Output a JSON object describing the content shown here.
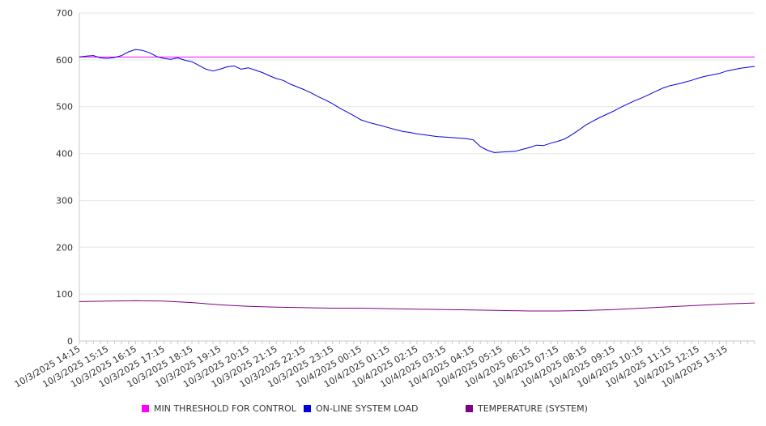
{
  "chart_data": {
    "type": "line",
    "title": "",
    "xlabel": "",
    "ylabel": "",
    "ylim": [
      0,
      700
    ],
    "yticks": [
      0,
      100,
      200,
      300,
      400,
      500,
      600,
      700
    ],
    "grid": true,
    "legend_position": "bottom",
    "x_tick_labels": [
      "10/3/2025 14:15",
      "10/3/2025 15:15",
      "10/3/2025 16:15",
      "10/3/2025 17:15",
      "10/3/2025 18:15",
      "10/3/2025 19:15",
      "10/3/2025 20:15",
      "10/3/2025 21:15",
      "10/3/2025 22:15",
      "10/3/2025 23:15",
      "10/4/2025 00:15",
      "10/4/2025 01:15",
      "10/4/2025 02:15",
      "10/4/2025 03:15",
      "10/4/2025 04:15",
      "10/4/2025 05:15",
      "10/4/2025 06:15",
      "10/4/2025 07:15",
      "10/4/2025 08:15",
      "10/4/2025 09:15",
      "10/4/2025 10:15",
      "10/4/2025 11:15",
      "10/4/2025 12:15",
      "10/4/2025 13:15"
    ],
    "x_range": [
      "10/3/2025 14:15",
      "10/4/2025 14:15"
    ],
    "series": [
      {
        "name": "MIN THRESHOLD FOR CONTROL",
        "color": "#ff00ff",
        "points": [
          [
            "10/3/2025 14:15",
            606
          ],
          [
            "10/4/2025 14:15",
            606
          ]
        ]
      },
      {
        "name": "ON-LINE SYSTEM LOAD",
        "color": "#0000dd",
        "points": [
          [
            "10/3/2025 14:15",
            606
          ],
          [
            "10/3/2025 14:30",
            608
          ],
          [
            "10/3/2025 14:45",
            609
          ],
          [
            "10/3/2025 15:00",
            604
          ],
          [
            "10/3/2025 15:15",
            603
          ],
          [
            "10/3/2025 15:30",
            605
          ],
          [
            "10/3/2025 15:45",
            609
          ],
          [
            "10/3/2025 16:00",
            617
          ],
          [
            "10/3/2025 16:15",
            622
          ],
          [
            "10/3/2025 16:30",
            620
          ],
          [
            "10/3/2025 16:45",
            615
          ],
          [
            "10/3/2025 17:00",
            607
          ],
          [
            "10/3/2025 17:15",
            603
          ],
          [
            "10/3/2025 17:30",
            601
          ],
          [
            "10/3/2025 17:45",
            604
          ],
          [
            "10/3/2025 18:00",
            599
          ],
          [
            "10/3/2025 18:15",
            596
          ],
          [
            "10/3/2025 18:30",
            588
          ],
          [
            "10/3/2025 18:45",
            580
          ],
          [
            "10/3/2025 19:00",
            576
          ],
          [
            "10/3/2025 19:15",
            580
          ],
          [
            "10/3/2025 19:30",
            585
          ],
          [
            "10/3/2025 19:45",
            587
          ],
          [
            "10/3/2025 20:00",
            580
          ],
          [
            "10/3/2025 20:15",
            583
          ],
          [
            "10/3/2025 20:30",
            578
          ],
          [
            "10/3/2025 20:45",
            573
          ],
          [
            "10/3/2025 21:00",
            566
          ],
          [
            "10/3/2025 21:15",
            560
          ],
          [
            "10/3/2025 21:30",
            556
          ],
          [
            "10/3/2025 21:45",
            548
          ],
          [
            "10/3/2025 22:00",
            542
          ],
          [
            "10/3/2025 22:15",
            536
          ],
          [
            "10/3/2025 22:30",
            529
          ],
          [
            "10/3/2025 22:45",
            521
          ],
          [
            "10/3/2025 23:00",
            514
          ],
          [
            "10/3/2025 23:15",
            506
          ],
          [
            "10/3/2025 23:30",
            497
          ],
          [
            "10/3/2025 23:45",
            489
          ],
          [
            "10/4/2025 00:00",
            481
          ],
          [
            "10/4/2025 00:15",
            472
          ],
          [
            "10/4/2025 00:30",
            467
          ],
          [
            "10/4/2025 00:45",
            463
          ],
          [
            "10/4/2025 01:00",
            459
          ],
          [
            "10/4/2025 01:15",
            455
          ],
          [
            "10/4/2025 01:30",
            451
          ],
          [
            "10/4/2025 01:45",
            447
          ],
          [
            "10/4/2025 02:00",
            445
          ],
          [
            "10/4/2025 02:15",
            442
          ],
          [
            "10/4/2025 02:30",
            440
          ],
          [
            "10/4/2025 02:45",
            438
          ],
          [
            "10/4/2025 03:00",
            436
          ],
          [
            "10/4/2025 03:15",
            435
          ],
          [
            "10/4/2025 03:30",
            434
          ],
          [
            "10/4/2025 03:45",
            433
          ],
          [
            "10/4/2025 04:00",
            432
          ],
          [
            "10/4/2025 04:15",
            429
          ],
          [
            "10/4/2025 04:30",
            415
          ],
          [
            "10/4/2025 04:45",
            407
          ],
          [
            "10/4/2025 05:00",
            402
          ],
          [
            "10/4/2025 05:15",
            403
          ],
          [
            "10/4/2025 05:30",
            404
          ],
          [
            "10/4/2025 05:45",
            405
          ],
          [
            "10/4/2025 06:00",
            409
          ],
          [
            "10/4/2025 06:15",
            413
          ],
          [
            "10/4/2025 06:30",
            418
          ],
          [
            "10/4/2025 06:45",
            417
          ],
          [
            "10/4/2025 07:00",
            422
          ],
          [
            "10/4/2025 07:15",
            426
          ],
          [
            "10/4/2025 07:30",
            431
          ],
          [
            "10/4/2025 07:45",
            440
          ],
          [
            "10/4/2025 08:00",
            450
          ],
          [
            "10/4/2025 08:15",
            461
          ],
          [
            "10/4/2025 08:30",
            469
          ],
          [
            "10/4/2025 08:45",
            477
          ],
          [
            "10/4/2025 09:00",
            484
          ],
          [
            "10/4/2025 09:15",
            491
          ],
          [
            "10/4/2025 09:30",
            499
          ],
          [
            "10/4/2025 09:45",
            506
          ],
          [
            "10/4/2025 10:00",
            513
          ],
          [
            "10/4/2025 10:15",
            519
          ],
          [
            "10/4/2025 10:30",
            526
          ],
          [
            "10/4/2025 10:45",
            533
          ],
          [
            "10/4/2025 11:00",
            540
          ],
          [
            "10/4/2025 11:15",
            545
          ],
          [
            "10/4/2025 11:30",
            548
          ],
          [
            "10/4/2025 11:45",
            552
          ],
          [
            "10/4/2025 12:00",
            556
          ],
          [
            "10/4/2025 12:15",
            561
          ],
          [
            "10/4/2025 12:30",
            565
          ],
          [
            "10/4/2025 12:45",
            568
          ],
          [
            "10/4/2025 13:00",
            571
          ],
          [
            "10/4/2025 13:15",
            576
          ],
          [
            "10/4/2025 13:30",
            579
          ],
          [
            "10/4/2025 13:45",
            582
          ],
          [
            "10/4/2025 14:00",
            584
          ],
          [
            "10/4/2025 14:15",
            586
          ]
        ]
      },
      {
        "name": "TEMPERATURE (SYSTEM)",
        "color": "#800080",
        "points": [
          [
            "10/3/2025 14:15",
            84
          ],
          [
            "10/3/2025 15:15",
            85
          ],
          [
            "10/3/2025 16:15",
            86
          ],
          [
            "10/3/2025 17:15",
            85
          ],
          [
            "10/3/2025 18:15",
            82
          ],
          [
            "10/3/2025 19:15",
            77
          ],
          [
            "10/3/2025 20:15",
            74
          ],
          [
            "10/3/2025 21:15",
            72
          ],
          [
            "10/3/2025 22:15",
            71
          ],
          [
            "10/3/2025 23:15",
            70
          ],
          [
            "10/4/2025 00:15",
            70
          ],
          [
            "10/4/2025 01:15",
            69
          ],
          [
            "10/4/2025 02:15",
            68
          ],
          [
            "10/4/2025 03:15",
            67
          ],
          [
            "10/4/2025 04:15",
            66
          ],
          [
            "10/4/2025 05:15",
            65
          ],
          [
            "10/4/2025 06:15",
            64
          ],
          [
            "10/4/2025 07:15",
            64
          ],
          [
            "10/4/2025 08:15",
            65
          ],
          [
            "10/4/2025 09:15",
            67
          ],
          [
            "10/4/2025 10:15",
            70
          ],
          [
            "10/4/2025 11:15",
            73
          ],
          [
            "10/4/2025 12:15",
            76
          ],
          [
            "10/4/2025 13:15",
            79
          ],
          [
            "10/4/2025 14:15",
            81
          ]
        ]
      }
    ]
  }
}
